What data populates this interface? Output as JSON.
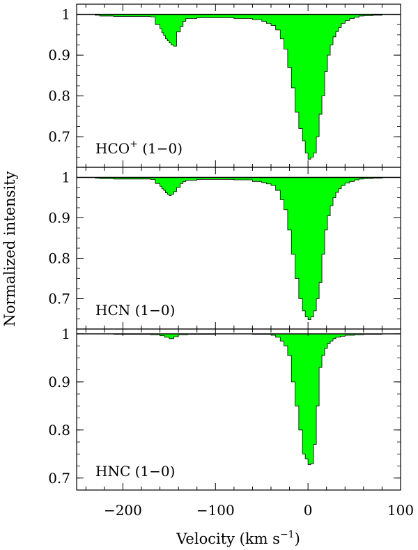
{
  "chart_data": {
    "type": "area",
    "xlabel_main": "Velocity (km s",
    "xlabel_sup": "−1",
    "xlabel_close": ")",
    "ylabel": "Normalized intensity",
    "xlim": [
      -250,
      100
    ],
    "xticks": [
      -200,
      -100,
      0,
      100
    ],
    "xtick_labels": [
      "−200",
      "−100",
      "0",
      "100"
    ],
    "fill_color": "#00ff00",
    "panels": [
      {
        "label_main": "HCO",
        "label_sup": "+",
        "label_rest": " (1−0)",
        "ylim": [
          0.625,
          1.025
        ],
        "yticks": [
          0.7,
          0.8,
          0.9,
          1.0
        ],
        "ytick_labels": [
          "0.7",
          "0.8",
          "0.9",
          "1"
        ],
        "x": [
          -250,
          -230,
          -225,
          -210,
          -170,
          -165,
          -160,
          -158,
          -156,
          -154,
          -152,
          -150,
          -148,
          -145,
          -142,
          -138,
          -135,
          -132,
          -120,
          -100,
          -80,
          -60,
          -50,
          -45,
          -40,
          -35,
          -30,
          -26,
          -22,
          -18,
          -14,
          -10,
          -6,
          -3,
          0,
          3,
          6,
          9,
          12,
          15,
          18,
          21,
          24,
          27,
          30,
          33,
          36,
          40,
          45,
          50,
          55,
          60,
          70,
          80,
          100
        ],
        "y": [
          1.0,
          0.998,
          0.996,
          0.995,
          0.994,
          0.975,
          0.965,
          0.955,
          0.948,
          0.94,
          0.935,
          0.93,
          0.925,
          0.922,
          0.957,
          0.97,
          0.983,
          0.99,
          0.992,
          0.992,
          0.99,
          0.987,
          0.983,
          0.978,
          0.973,
          0.962,
          0.94,
          0.915,
          0.87,
          0.82,
          0.76,
          0.72,
          0.69,
          0.66,
          0.645,
          0.65,
          0.66,
          0.7,
          0.755,
          0.8,
          0.86,
          0.9,
          0.925,
          0.945,
          0.958,
          0.968,
          0.978,
          0.985,
          0.99,
          0.993,
          0.996,
          0.997,
          0.998,
          1.0,
          1.0
        ]
      },
      {
        "label_main": "HCN",
        "label_sup": "",
        "label_rest": " (1−0)",
        "ylim": [
          0.625,
          1.025
        ],
        "yticks": [
          0.7,
          0.8,
          0.9,
          1.0
        ],
        "ytick_labels": [
          "0.7",
          "0.8",
          "0.9",
          "1"
        ],
        "x": [
          -250,
          -230,
          -225,
          -210,
          -170,
          -165,
          -160,
          -158,
          -156,
          -154,
          -152,
          -150,
          -148,
          -145,
          -142,
          -138,
          -135,
          -132,
          -120,
          -100,
          -80,
          -60,
          -50,
          -45,
          -40,
          -35,
          -30,
          -26,
          -22,
          -18,
          -14,
          -10,
          -6,
          -3,
          0,
          3,
          6,
          9,
          12,
          15,
          18,
          21,
          24,
          27,
          30,
          33,
          36,
          40,
          45,
          50,
          55,
          60,
          70,
          80,
          100
        ],
        "y": [
          1.0,
          0.998,
          0.997,
          0.996,
          0.995,
          0.985,
          0.978,
          0.972,
          0.968,
          0.962,
          0.958,
          0.955,
          0.958,
          0.965,
          0.975,
          0.985,
          0.99,
          0.993,
          0.995,
          0.995,
          0.994,
          0.99,
          0.987,
          0.984,
          0.98,
          0.968,
          0.945,
          0.92,
          0.87,
          0.81,
          0.75,
          0.7,
          0.67,
          0.655,
          0.648,
          0.655,
          0.67,
          0.7,
          0.74,
          0.81,
          0.87,
          0.905,
          0.93,
          0.95,
          0.963,
          0.972,
          0.98,
          0.986,
          0.99,
          0.994,
          0.996,
          0.997,
          0.998,
          1.0,
          1.0
        ]
      },
      {
        "label_main": "HNC",
        "label_sup": "",
        "label_rest": " (1−0)",
        "ylim": [
          0.675,
          1.01
        ],
        "yticks": [
          0.7,
          0.8,
          0.9,
          1.0
        ],
        "ytick_labels": [
          "0.7",
          "0.8",
          "0.9",
          "1"
        ],
        "x": [
          -250,
          -230,
          -210,
          -170,
          -160,
          -155,
          -150,
          -145,
          -140,
          -130,
          -100,
          -60,
          -40,
          -35,
          -30,
          -26,
          -22,
          -18,
          -14,
          -10,
          -6,
          -3,
          0,
          3,
          6,
          9,
          12,
          15,
          18,
          21,
          24,
          27,
          30,
          35,
          40,
          50,
          60,
          80,
          100
        ],
        "y": [
          1.0,
          1.0,
          0.999,
          0.998,
          0.996,
          0.993,
          0.99,
          0.994,
          0.998,
          0.999,
          1.0,
          0.999,
          0.997,
          0.993,
          0.985,
          0.975,
          0.955,
          0.9,
          0.85,
          0.8,
          0.75,
          0.74,
          0.728,
          0.73,
          0.77,
          0.85,
          0.93,
          0.955,
          0.97,
          0.98,
          0.985,
          0.99,
          0.993,
          0.995,
          0.997,
          0.998,
          0.999,
          1.0,
          1.0
        ]
      }
    ]
  }
}
